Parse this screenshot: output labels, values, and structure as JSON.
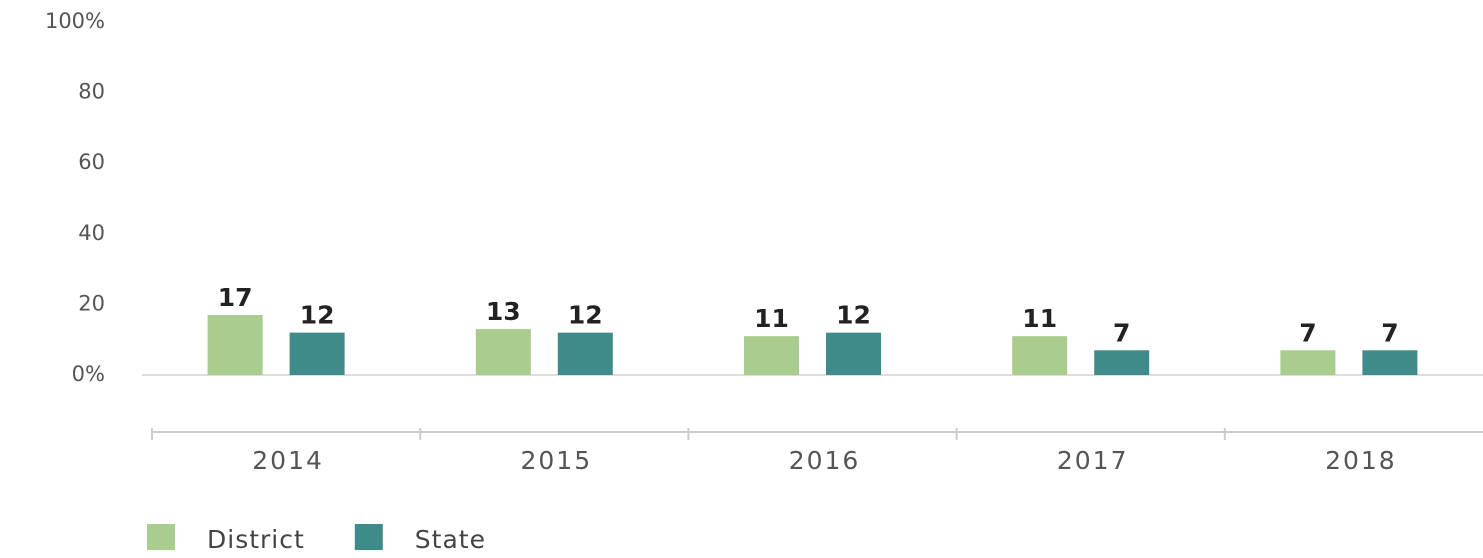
{
  "chart_data": {
    "type": "bar",
    "categories": [
      "2014",
      "2015",
      "2016",
      "2017",
      "2018"
    ],
    "series": [
      {
        "name": "District",
        "color": "#a9cc8f",
        "values": [
          17,
          13,
          11,
          11,
          7
        ]
      },
      {
        "name": "State",
        "color": "#3f8b89",
        "values": [
          12,
          12,
          12,
          7,
          7
        ]
      }
    ],
    "ylim": [
      0,
      100
    ],
    "yticks": [
      {
        "value": 0,
        "label": "0%"
      },
      20,
      40,
      60,
      80,
      {
        "value": 100,
        "label": "100%"
      }
    ],
    "legend": "bottom-left"
  }
}
